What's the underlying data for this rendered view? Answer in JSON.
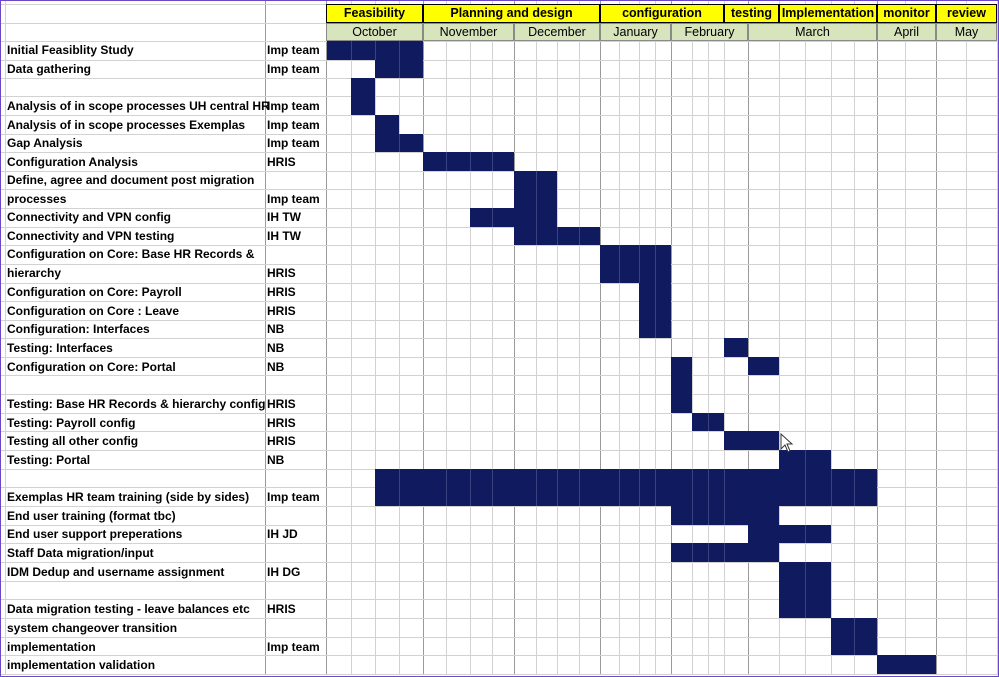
{
  "phases": [
    "Feasibility",
    "Planning and design",
    "configuration",
    "testing",
    "Implementation",
    "monitor",
    "review"
  ],
  "months": [
    "October",
    "November",
    "December",
    "January",
    "February",
    "March",
    "April",
    "May"
  ],
  "tasks": [
    {
      "label": "Initial Feasiblity Study",
      "owner": "Imp team"
    },
    {
      "label": "Data gathering",
      "owner": "Imp team"
    },
    {
      "label": "Analysis of in scope processes UH central HR",
      "owner": "Imp team"
    },
    {
      "label": "Analysis of in scope processes Exemplas",
      "owner": "Imp team"
    },
    {
      "label": "Gap Analysis",
      "owner": "Imp team"
    },
    {
      "label": "Configuration Analysis",
      "owner": "HRIS"
    },
    {
      "label": "Define, agree and document post migration",
      "owner": ""
    },
    {
      "label": "processes",
      "owner": "Imp team"
    },
    {
      "label": "Connectivity and VPN config",
      "owner": "IH TW"
    },
    {
      "label": "Connectivity and VPN testing",
      "owner": "IH TW"
    },
    {
      "label": "Configuration on Core: Base HR Records &",
      "owner": ""
    },
    {
      "label": "hierarchy",
      "owner": "HRIS"
    },
    {
      "label": "Configuration on Core: Payroll",
      "owner": "HRIS"
    },
    {
      "label": "Configuration on Core : Leave",
      "owner": "HRIS"
    },
    {
      "label": "Configuration: Interfaces",
      "owner": "NB"
    },
    {
      "label": "Testing: Interfaces",
      "owner": "NB"
    },
    {
      "label": "Configuration on Core: Portal",
      "owner": "NB"
    },
    {
      "label": "Testing: Base HR Records & hierarchy config",
      "owner": "HRIS"
    },
    {
      "label": "Testing: Payroll config",
      "owner": "HRIS"
    },
    {
      "label": "Testing all other config",
      "owner": "HRIS"
    },
    {
      "label": "Testing: Portal",
      "owner": "NB"
    },
    {
      "label": "Exemplas HR team training (side by sides)",
      "owner": "Imp team"
    },
    {
      "label": "End user training (format tbc)",
      "owner": ""
    },
    {
      "label": "End user support preperations",
      "owner": "IH JD"
    },
    {
      "label": "Staff Data migration/input",
      "owner": ""
    },
    {
      "label": "IDM Dedup and username assignment",
      "owner": "IH DG"
    },
    {
      "label": "Data migration testing - leave balances etc",
      "owner": "HRIS"
    },
    {
      "label": "system changeover transition",
      "owner": ""
    },
    {
      "label": "implementation",
      "owner": "Imp team"
    },
    {
      "label": "implementation validation",
      "owner": ""
    }
  ],
  "colors": {
    "bar": "#101a5e",
    "phase_fill": "#ffff00",
    "month_fill": "#d8e4bc",
    "frame": "#6b47c8"
  },
  "icons": {
    "cursor": "mouse-pointer-icon"
  }
}
